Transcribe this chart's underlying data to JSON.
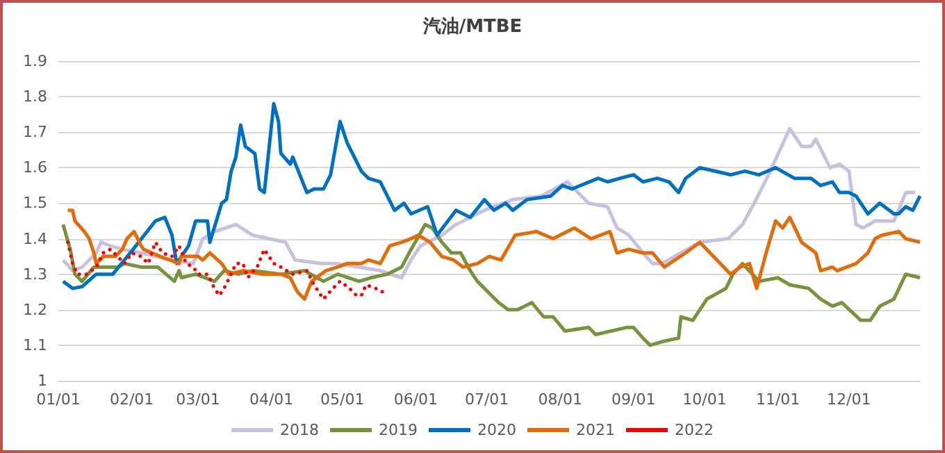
{
  "chart_data": {
    "type": "line",
    "title": "汽油/MTBE",
    "xlim": [
      "--01-01",
      "--12-31"
    ],
    "xticks": [
      {
        "value": "--01-01",
        "label": "01/01"
      },
      {
        "value": "--02-01",
        "label": "02/01"
      },
      {
        "value": "--03-01",
        "label": "03/01"
      },
      {
        "value": "--04-01",
        "label": "04/01"
      },
      {
        "value": "--05-01",
        "label": "05/01"
      },
      {
        "value": "--06-01",
        "label": "06/01"
      },
      {
        "value": "--07-01",
        "label": "07/01"
      },
      {
        "value": "--08-01",
        "label": "08/01"
      },
      {
        "value": "--09-01",
        "label": "09/01"
      },
      {
        "value": "--10-01",
        "label": "10/01"
      },
      {
        "value": "--11-01",
        "label": "11/01"
      },
      {
        "value": "--12-01",
        "label": "12/01"
      }
    ],
    "ylim": [
      1,
      1.9
    ],
    "yticks": [
      1,
      1.1,
      1.2,
      1.3,
      1.4,
      1.5,
      1.6,
      1.7,
      1.8,
      1.9
    ],
    "grid": "y",
    "legend": "bottom",
    "marker": "none",
    "line_style": "solid",
    "series": [
      {
        "name": "2018",
        "color": "#c9c0de",
        "x": [
          "--01-03",
          "--01-07",
          "--01-11",
          "--01-17",
          "--01-19",
          "--01-23",
          "--01-28",
          "--02-05",
          "--02-11",
          "--02-18",
          "--02-27",
          "--03-03",
          "--03-08",
          "--03-17",
          "--03-24",
          "--03-31",
          "--04-07",
          "--04-11",
          "--04-22",
          "--04-28",
          "--05-08",
          "--05-17",
          "--05-26",
          "--05-30",
          "--06-03",
          "--06-12",
          "--06-18",
          "--06-24",
          "--06-30",
          "--07-12",
          "--07-24",
          "--08-04",
          "--08-13",
          "--08-21",
          "--08-25",
          "--08-30",
          "--09-05",
          "--09-09",
          "--09-13",
          "--09-21",
          "--09-29",
          "--10-11",
          "--10-17",
          "--10-22",
          "--10-28",
          "--11-06",
          "--11-11",
          "--11-15",
          "--11-17",
          "--11-23",
          "--11-27",
          "--12-01",
          "--12-04",
          "--12-07",
          "--12-12",
          "--12-20",
          "--12-25",
          "--12-29"
        ],
        "values": [
          1.34,
          1.31,
          1.32,
          1.36,
          1.39,
          1.38,
          1.37,
          1.36,
          1.35,
          1.34,
          1.33,
          1.4,
          1.42,
          1.44,
          1.41,
          1.4,
          1.39,
          1.34,
          1.33,
          1.33,
          1.32,
          1.31,
          1.29,
          1.34,
          1.38,
          1.41,
          1.44,
          1.46,
          1.48,
          1.51,
          1.52,
          1.56,
          1.5,
          1.49,
          1.43,
          1.41,
          1.36,
          1.33,
          1.33,
          1.36,
          1.39,
          1.4,
          1.44,
          1.5,
          1.58,
          1.71,
          1.66,
          1.66,
          1.68,
          1.6,
          1.61,
          1.59,
          1.44,
          1.43,
          1.45,
          1.45,
          1.53,
          1.53
        ]
      },
      {
        "name": "2019",
        "color": "#77933c",
        "x": [
          "--01-03",
          "--01-06",
          "--01-08",
          "--01-11",
          "--01-16",
          "--01-26",
          "--01-29",
          "--02-05",
          "--02-12",
          "--02-19",
          "--02-21",
          "--02-22",
          "--02-28",
          "--03-08",
          "--03-12",
          "--03-18",
          "--03-24",
          "--04-05",
          "--04-15",
          "--04-23",
          "--04-29",
          "--05-08",
          "--05-13",
          "--05-20",
          "--05-26",
          "--05-30",
          "--06-05",
          "--06-08",
          "--06-12",
          "--06-16",
          "--06-20",
          "--06-24",
          "--06-27",
          "--06-30",
          "--07-06",
          "--07-10",
          "--07-14",
          "--07-20",
          "--07-25",
          "--07-29",
          "--08-03",
          "--08-13",
          "--08-16",
          "--08-29",
          "--09-01",
          "--09-05",
          "--09-08",
          "--09-13",
          "--09-20",
          "--09-21",
          "--09-26",
          "--10-02",
          "--10-10",
          "--10-13",
          "--10-17",
          "--10-24",
          "--11-01",
          "--11-06",
          "--11-14",
          "--11-19",
          "--11-24",
          "--11-28",
          "--12-06",
          "--12-10",
          "--12-14",
          "--12-20",
          "--12-25",
          "--12-31"
        ],
        "values": [
          1.44,
          1.37,
          1.3,
          1.28,
          1.32,
          1.32,
          1.33,
          1.32,
          1.32,
          1.28,
          1.31,
          1.29,
          1.3,
          1.28,
          1.31,
          1.3,
          1.31,
          1.3,
          1.31,
          1.28,
          1.3,
          1.28,
          1.29,
          1.3,
          1.32,
          1.37,
          1.44,
          1.43,
          1.39,
          1.36,
          1.36,
          1.31,
          1.28,
          1.26,
          1.22,
          1.2,
          1.2,
          1.22,
          1.18,
          1.18,
          1.14,
          1.15,
          1.13,
          1.15,
          1.15,
          1.12,
          1.1,
          1.11,
          1.12,
          1.18,
          1.17,
          1.23,
          1.26,
          1.3,
          1.33,
          1.28,
          1.29,
          1.27,
          1.26,
          1.23,
          1.21,
          1.22,
          1.17,
          1.17,
          1.21,
          1.23,
          1.3,
          1.29
        ]
      },
      {
        "name": "2020",
        "color": "#0070c0",
        "x": [
          "--01-03",
          "--01-07",
          "--01-11",
          "--01-17",
          "--01-24",
          "--02-01",
          "--02-11",
          "--02-15",
          "--02-18",
          "--02-20",
          "--02-25",
          "--02-28",
          "--03-05",
          "--03-06",
          "--03-11",
          "--03-13",
          "--03-15",
          "--03-17",
          "--03-19",
          "--03-21",
          "--03-25",
          "--03-27",
          "--03-29",
          "--04-02",
          "--04-04",
          "--04-05",
          "--04-09",
          "--04-10",
          "--04-13",
          "--04-16",
          "--04-19",
          "--04-23",
          "--04-26",
          "--04-30",
          "--05-03",
          "--05-09",
          "--05-12",
          "--05-17",
          "--05-23",
          "--05-27",
          "--05-30",
          "--06-06",
          "--06-10",
          "--06-18",
          "--06-24",
          "--06-30",
          "--07-04",
          "--07-09",
          "--07-12",
          "--07-18",
          "--07-28",
          "--08-02",
          "--08-06",
          "--08-17",
          "--08-21",
          "--08-29",
          "--09-01",
          "--09-05",
          "--09-11",
          "--09-16",
          "--09-20",
          "--09-23",
          "--09-29",
          "--10-12",
          "--10-18",
          "--10-24",
          "--10-31",
          "--11-08",
          "--11-15",
          "--11-19",
          "--11-24",
          "--11-27",
          "--12-01",
          "--12-04",
          "--12-09",
          "--12-14",
          "--12-20",
          "--12-22",
          "--12-25",
          "--12-28",
          "--12-31"
        ],
        "values": [
          1.28,
          1.26,
          1.265,
          1.3,
          1.3,
          1.365,
          1.45,
          1.46,
          1.41,
          1.33,
          1.38,
          1.45,
          1.45,
          1.39,
          1.5,
          1.51,
          1.59,
          1.63,
          1.72,
          1.66,
          1.64,
          1.54,
          1.53,
          1.78,
          1.73,
          1.64,
          1.61,
          1.63,
          1.58,
          1.53,
          1.54,
          1.54,
          1.58,
          1.73,
          1.67,
          1.59,
          1.57,
          1.56,
          1.48,
          1.5,
          1.47,
          1.49,
          1.41,
          1.48,
          1.46,
          1.51,
          1.48,
          1.5,
          1.48,
          1.51,
          1.52,
          1.55,
          1.54,
          1.57,
          1.56,
          1.575,
          1.58,
          1.56,
          1.57,
          1.56,
          1.53,
          1.57,
          1.6,
          1.58,
          1.59,
          1.58,
          1.6,
          1.57,
          1.57,
          1.55,
          1.56,
          1.53,
          1.53,
          1.52,
          1.47,
          1.5,
          1.47,
          1.47,
          1.49,
          1.48,
          1.52
        ]
      },
      {
        "name": "2021",
        "color": "#e36c09",
        "x": [
          "--01-05",
          "--01-07",
          "--01-08",
          "--01-12",
          "--01-14",
          "--01-16",
          "--01-17",
          "--01-20",
          "--01-25",
          "--01-28",
          "--01-30",
          "--02-02",
          "--02-05",
          "--02-06",
          "--02-13",
          "--02-21",
          "--02-22",
          "--03-01",
          "--03-03",
          "--03-06",
          "--03-11",
          "--03-14",
          "--03-20",
          "--03-28",
          "--04-01",
          "--04-05",
          "--04-09",
          "--04-12",
          "--04-15",
          "--04-18",
          "--04-24",
          "--04-29",
          "--05-03",
          "--05-09",
          "--05-12",
          "--05-17",
          "--05-21",
          "--05-26",
          "--05-30",
          "--06-02",
          "--06-07",
          "--06-12",
          "--06-17",
          "--06-21",
          "--06-27",
          "--07-02",
          "--07-07",
          "--07-13",
          "--07-22",
          "--07-29",
          "--08-07",
          "--08-14",
          "--08-22",
          "--08-25",
          "--08-30",
          "--09-05",
          "--09-09",
          "--09-14",
          "--09-23",
          "--09-29",
          "--10-12",
          "--10-16",
          "--10-20",
          "--10-23",
          "--10-27",
          "--10-31",
          "--11-03",
          "--11-06",
          "--11-11",
          "--11-17",
          "--11-19",
          "--11-24",
          "--11-26",
          "--12-04",
          "--12-09",
          "--12-12",
          "--12-15",
          "--12-22",
          "--12-25",
          "--12-31"
        ],
        "values": [
          1.48,
          1.48,
          1.45,
          1.42,
          1.4,
          1.36,
          1.33,
          1.35,
          1.35,
          1.37,
          1.4,
          1.42,
          1.38,
          1.37,
          1.35,
          1.33,
          1.35,
          1.35,
          1.34,
          1.36,
          1.33,
          1.3,
          1.31,
          1.3,
          1.3,
          1.3,
          1.29,
          1.25,
          1.23,
          1.28,
          1.31,
          1.32,
          1.33,
          1.33,
          1.34,
          1.33,
          1.38,
          1.39,
          1.4,
          1.41,
          1.39,
          1.35,
          1.34,
          1.32,
          1.33,
          1.35,
          1.34,
          1.41,
          1.42,
          1.4,
          1.43,
          1.4,
          1.42,
          1.36,
          1.37,
          1.36,
          1.36,
          1.32,
          1.36,
          1.39,
          1.3,
          1.32,
          1.33,
          1.26,
          1.36,
          1.45,
          1.43,
          1.46,
          1.39,
          1.36,
          1.31,
          1.32,
          1.31,
          1.33,
          1.36,
          1.4,
          1.41,
          1.42,
          1.4,
          1.39
        ]
      },
      {
        "name": "2022",
        "color": "#ff0000",
        "line_style": "dotted",
        "x": [
          "--01-05",
          "--01-07",
          "--01-09",
          "--01-13",
          "--01-17",
          "--01-20",
          "--01-23",
          "--01-26",
          "--01-29",
          "--02-01",
          "--02-05",
          "--02-08",
          "--02-11",
          "--02-14",
          "--02-18",
          "--02-21",
          "--02-24",
          "--02-27",
          "--03-01",
          "--03-05",
          "--03-08",
          "--03-10",
          "--03-12",
          "--03-15",
          "--03-17",
          "--03-20",
          "--03-22",
          "--03-26",
          "--03-29",
          "--04-02",
          "--04-05",
          "--04-10",
          "--04-16",
          "--04-19",
          "--04-23",
          "--04-27",
          "--04-30",
          "--05-04",
          "--05-07",
          "--05-09",
          "--05-11",
          "--05-15",
          "--05-18"
        ],
        "values": [
          1.39,
          1.33,
          1.3,
          1.3,
          1.32,
          1.36,
          1.37,
          1.35,
          1.33,
          1.36,
          1.35,
          1.33,
          1.39,
          1.36,
          1.35,
          1.38,
          1.33,
          1.32,
          1.3,
          1.3,
          1.26,
          1.24,
          1.26,
          1.3,
          1.33,
          1.33,
          1.29,
          1.32,
          1.37,
          1.33,
          1.32,
          1.3,
          1.31,
          1.27,
          1.23,
          1.26,
          1.28,
          1.26,
          1.24,
          1.24,
          1.27,
          1.26,
          1.25
        ]
      }
    ]
  }
}
